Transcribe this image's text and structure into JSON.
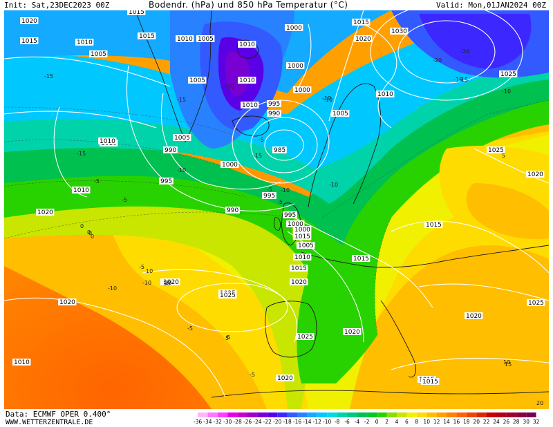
{
  "header": {
    "init": "Init: Sat,23DEC2023 00Z",
    "title": "Bodendr. (hPa) und 850 hPa Temperatur (°C)",
    "valid": "Valid: Mon,01JAN2024 00Z"
  },
  "footer": {
    "data_source": "Data: ECMWF OPER 0.400°",
    "website": "WWW.WETTERZENTRALE.DE"
  },
  "legend": {
    "values": [
      "-36",
      "-34",
      "-32",
      "-30",
      "-28",
      "-26",
      "-24",
      "-22",
      "-20",
      "-18",
      "-16",
      "-14",
      "-12",
      "-10",
      "-8",
      "-6",
      "-4",
      "-2",
      "0",
      "2",
      "4",
      "6",
      "8",
      "10",
      "12",
      "14",
      "16",
      "18",
      "20",
      "22",
      "24",
      "26",
      "28",
      "30",
      "32"
    ],
    "colors": [
      "#ffb4ff",
      "#ff78ff",
      "#ff3cff",
      "#e600e6",
      "#c800c8",
      "#a000c8",
      "#7800d2",
      "#5a00e6",
      "#3c28ff",
      "#325aff",
      "#2882ff",
      "#14aaff",
      "#00c8ff",
      "#00dcdc",
      "#00d2aa",
      "#00c882",
      "#00c050",
      "#00c828",
      "#28d200",
      "#8cdc00",
      "#c8e600",
      "#f0f000",
      "#ffdc00",
      "#ffbe00",
      "#ffa000",
      "#ff8200",
      "#ff6400",
      "#f04600",
      "#dc2800",
      "#c80000",
      "#b40014",
      "#a0002d",
      "#8c003c",
      "#780050"
    ]
  },
  "pressure_labels": [
    "1015",
    "1020",
    "1015",
    "1010",
    "1005",
    "1010",
    "1005",
    "1015",
    "1010",
    "1015",
    "1010",
    "1005",
    "1010",
    "1000",
    "1010",
    "1005",
    "1020",
    "1030",
    "1025",
    "1000",
    "1000",
    "995",
    "990",
    "985",
    "1005",
    "1010",
    "990",
    "1000",
    "995",
    "1000",
    "990",
    "995",
    "1010",
    "1020",
    "1015",
    "995",
    "1000",
    "1005",
    "1010",
    "1015",
    "1020",
    "1025",
    "1020",
    "1025",
    "1015",
    "1020",
    "1015",
    "1010",
    "1020",
    "1025",
    "1025",
    "1020",
    "1015",
    "1010",
    "1020",
    "1020",
    "1020",
    "1025",
    "1015"
  ],
  "temperature_labels": [
    "-15",
    "-20",
    "-15",
    "-10",
    "-5",
    "-10",
    "-15",
    "-10",
    "-5",
    "-5",
    "-10",
    "0",
    "-5",
    "-5",
    "-10",
    "-15",
    "-10",
    "-5",
    "-10",
    "0",
    "5",
    "10",
    "5",
    "10",
    "-15",
    "-5",
    "-10",
    "0",
    "5",
    "10",
    "-20",
    "-15",
    "-10",
    "-5",
    "0",
    "5",
    "10",
    "15",
    "20"
  ]
}
